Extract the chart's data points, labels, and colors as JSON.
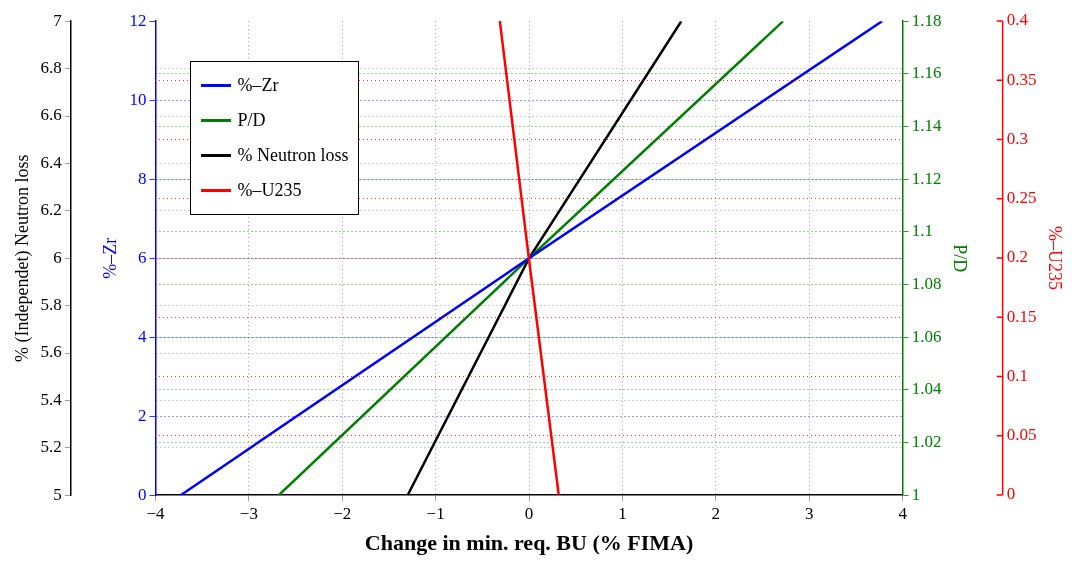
{
  "chart_data": [
    {
      "type": "line",
      "xlabel": "Change in min. req. BU (% FIMA)",
      "ylabel": "%–Zr",
      "y2label": "P/D",
      "y3label": "% (Independet) Neutron loss",
      "xlim": [
        -4,
        4
      ],
      "xticks": [
        {
          "value": -4,
          "label": "−4"
        },
        {
          "value": -3,
          "label": "−3"
        },
        {
          "value": -2,
          "label": "−2"
        },
        {
          "value": -1,
          "label": "−1"
        },
        0,
        1,
        2,
        3,
        4
      ],
      "ylim": [
        0,
        12
      ],
      "yticks": [
        0,
        2,
        4,
        6,
        8,
        10,
        12
      ],
      "y2lim": [
        1,
        1.18
      ],
      "y2ticks": [
        1,
        1.02,
        1.04,
        1.06,
        1.08,
        1.1,
        1.12,
        1.14,
        1.16,
        1.18
      ],
      "y3lim": [
        5,
        7
      ],
      "y3ticks": [
        5,
        5.2,
        5.4,
        5.6,
        5.8,
        6,
        6.2,
        6.4,
        6.6,
        6.8,
        7
      ],
      "grid": true,
      "legend": "top left",
      "series": [
        {
          "name": "%–Zr",
          "color": "#0000ff",
          "x": [
            -3.73,
            0,
            3.78
          ],
          "values": [
            0,
            6,
            12
          ]
        },
        {
          "name": "P/D",
          "color": "#008000",
          "axis": "y2",
          "x": [
            -2.68,
            0,
            2.72
          ],
          "values": [
            1,
            1.09,
            1.18
          ]
        },
        {
          "name": "% Neutron loss",
          "color": "#000000",
          "axis": "y3",
          "x": [
            -1.3,
            0,
            1.63
          ],
          "values": [
            5,
            6,
            7
          ]
        }
      ]
    },
    {
      "type": "line",
      "y2label": "%–U235",
      "xlim": [
        -4,
        4
      ],
      "y2lim": [
        0,
        0.4
      ],
      "y2ticks": [
        0,
        0.05,
        0.1,
        0.15,
        0.2,
        0.25,
        0.3,
        0.35,
        0.4
      ],
      "tick_labels": "y",
      "grid": "y",
      "legend": "top left",
      "series": [
        {
          "name": "%–U235",
          "color": "#ff0000",
          "axis": "y2",
          "x": [
            -0.31,
            0,
            0.32
          ],
          "values": [
            0.4,
            0.2,
            0
          ]
        }
      ]
    }
  ]
}
